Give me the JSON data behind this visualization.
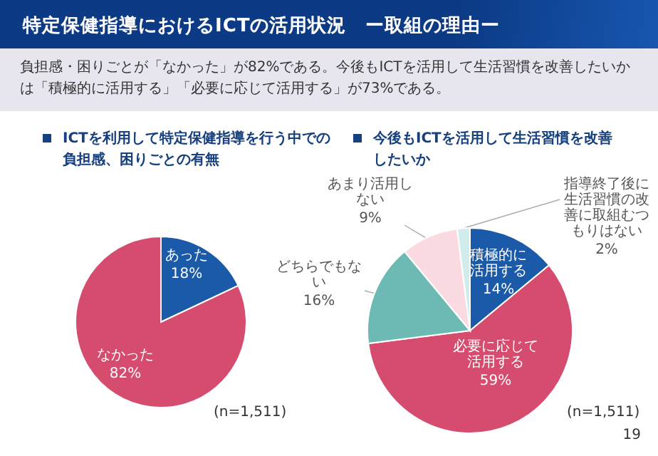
{
  "chart_data": [
    {
      "type": "other",
      "title": "特定保健指導におけるICTの活用状況　ー取組の理由ー",
      "subtitle": "負担感・困りごとが「なかった」が82%である。今後もICTを活用して生活習慣を改善したいかは「積極的に活用する」「必要に応じて活用する」が73%である。",
      "annotations": [
        "19"
      ]
    },
    {
      "type": "pie",
      "title": "ICTを利用して特定保健指導を行う中での負担感、困りごとの有無",
      "categories": [
        "あった",
        "なかった"
      ],
      "values": [
        18,
        82
      ],
      "value_labels": [
        "18%",
        "82%"
      ],
      "colors": [
        "#1a5aa8",
        "#d64c6e"
      ],
      "annotations": [
        "(n=1,511)"
      ]
    },
    {
      "type": "pie",
      "title": "今後もICTを活用して生活習慣を改善したいか",
      "categories": [
        "積極的に活用する",
        "必要に応じて活用する",
        "どちらでもない",
        "あまり活用しない",
        "指導終了後に生活習慣の改善に取組むつもりはない"
      ],
      "values": [
        14,
        59,
        16,
        9,
        2
      ],
      "value_labels": [
        "14%",
        "59%",
        "16%",
        "9%",
        "2%"
      ],
      "colors": [
        "#1a5aa8",
        "#d64c6e",
        "#6cbab3",
        "#fadbe2",
        "#d2ecec"
      ],
      "annotations": [
        "(n=1,511)"
      ]
    }
  ]
}
